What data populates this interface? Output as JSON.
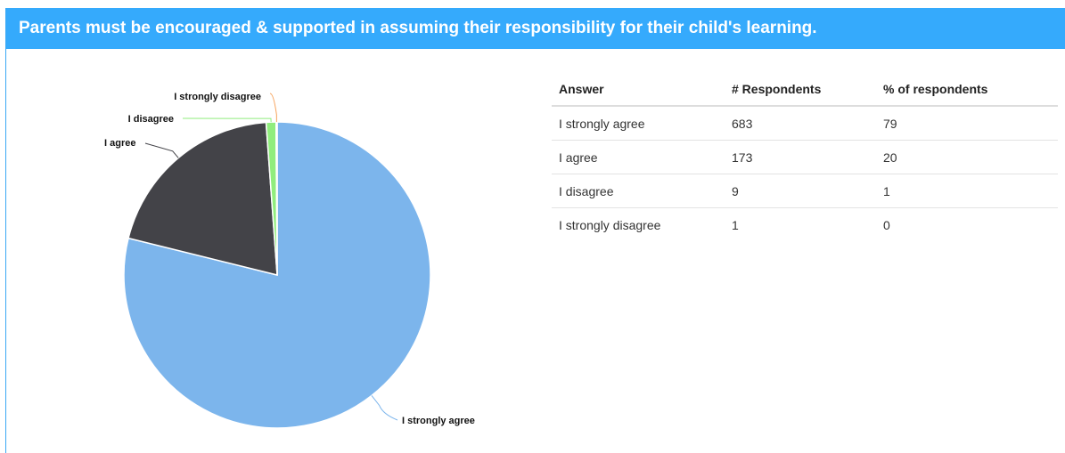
{
  "header": {
    "title": "Parents must be encouraged & supported in assuming their responsibility for their child's learning."
  },
  "chart_data": {
    "type": "pie",
    "title": "",
    "categories": [
      "I strongly agree",
      "I agree",
      "I disagree",
      "I strongly disagree"
    ],
    "values": [
      683,
      173,
      9,
      1
    ],
    "colors": [
      "#7cb5ec",
      "#434348",
      "#90ed7d",
      "#f7a35c"
    ],
    "legend": "none"
  },
  "table": {
    "columns": [
      "Answer",
      "# Respondents",
      "% of respondents"
    ],
    "rows": [
      [
        "I strongly agree",
        "683",
        "79"
      ],
      [
        "I agree",
        "173",
        "20"
      ],
      [
        "I disagree",
        "9",
        "1"
      ],
      [
        "I strongly disagree",
        "1",
        "0"
      ]
    ]
  }
}
